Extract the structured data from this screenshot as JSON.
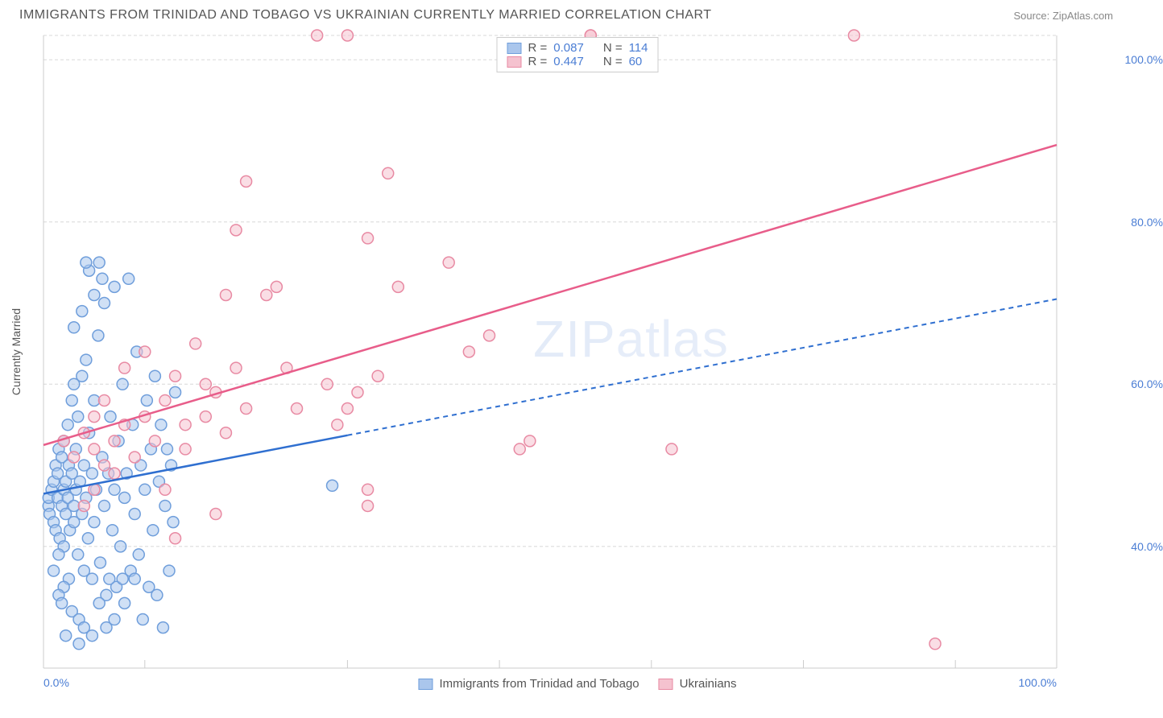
{
  "header": {
    "title": "IMMIGRANTS FROM TRINIDAD AND TOBAGO VS UKRAINIAN CURRENTLY MARRIED CORRELATION CHART",
    "source": "Source: ZipAtlas.com"
  },
  "chart": {
    "type": "scatter",
    "watermark": "ZIPatlas",
    "y_axis_label": "Currently Married",
    "background_color": "#ffffff",
    "grid_color": "#d8d8d8",
    "axis_color": "#cccccc",
    "label_color": "#4a7dd4",
    "text_color": "#555555",
    "xlim": [
      0,
      100
    ],
    "ylim": [
      25,
      103
    ],
    "x_ticks_major": [
      0,
      100
    ],
    "x_ticks_minor": [
      10,
      30,
      45,
      60,
      75,
      90
    ],
    "y_ticks": [
      40,
      60,
      80,
      100
    ],
    "x_tick_labels": [
      "0.0%",
      "100.0%"
    ],
    "y_tick_labels": [
      "40.0%",
      "60.0%",
      "80.0%",
      "100.0%"
    ],
    "marker_radius": 7,
    "marker_stroke_width": 1.5,
    "series": [
      {
        "name": "Immigrants from Trinidad and Tobago",
        "color_fill": "#aac6ec",
        "color_stroke": "#6f9edb",
        "color_line": "#2f6fd0",
        "r": 0.087,
        "n": 114,
        "regression": {
          "x1": 0,
          "y1": 46.5,
          "x2": 100,
          "y2": 70.5,
          "solid_until_x": 30
        },
        "points": [
          [
            0.5,
            45
          ],
          [
            0.5,
            46
          ],
          [
            0.6,
            44
          ],
          [
            0.8,
            47
          ],
          [
            1.0,
            48
          ],
          [
            1.0,
            43
          ],
          [
            1.2,
            50
          ],
          [
            1.2,
            42
          ],
          [
            1.4,
            46
          ],
          [
            1.4,
            49
          ],
          [
            1.5,
            52
          ],
          [
            1.6,
            41
          ],
          [
            1.8,
            45
          ],
          [
            1.8,
            51
          ],
          [
            2.0,
            47
          ],
          [
            2.0,
            40
          ],
          [
            2.0,
            53
          ],
          [
            2.2,
            44
          ],
          [
            2.2,
            48
          ],
          [
            2.4,
            46
          ],
          [
            2.4,
            55
          ],
          [
            2.5,
            50
          ],
          [
            2.6,
            42
          ],
          [
            2.8,
            49
          ],
          [
            2.8,
            58
          ],
          [
            3.0,
            45
          ],
          [
            3.0,
            43
          ],
          [
            3.0,
            60
          ],
          [
            3.2,
            47
          ],
          [
            3.2,
            52
          ],
          [
            3.4,
            39
          ],
          [
            3.4,
            56
          ],
          [
            3.6,
            48
          ],
          [
            3.8,
            44
          ],
          [
            3.8,
            61
          ],
          [
            4.0,
            50
          ],
          [
            4.0,
            37
          ],
          [
            4.2,
            46
          ],
          [
            4.2,
            63
          ],
          [
            4.4,
            41
          ],
          [
            4.5,
            54
          ],
          [
            4.8,
            49
          ],
          [
            4.8,
            36
          ],
          [
            5.0,
            58
          ],
          [
            5.0,
            43
          ],
          [
            5.2,
            47
          ],
          [
            5.4,
            66
          ],
          [
            5.6,
            38
          ],
          [
            5.8,
            51
          ],
          [
            6.0,
            45
          ],
          [
            6.0,
            70
          ],
          [
            6.2,
            34
          ],
          [
            6.4,
            49
          ],
          [
            6.6,
            56
          ],
          [
            6.8,
            42
          ],
          [
            7.0,
            47
          ],
          [
            7.0,
            72
          ],
          [
            7.2,
            35
          ],
          [
            7.4,
            53
          ],
          [
            7.6,
            40
          ],
          [
            7.8,
            60
          ],
          [
            8.0,
            46
          ],
          [
            8.0,
            33
          ],
          [
            8.2,
            49
          ],
          [
            8.4,
            73
          ],
          [
            8.6,
            37
          ],
          [
            8.8,
            55
          ],
          [
            9.0,
            44
          ],
          [
            9.2,
            64
          ],
          [
            9.4,
            39
          ],
          [
            9.6,
            50
          ],
          [
            9.8,
            31
          ],
          [
            10.0,
            47
          ],
          [
            10.2,
            58
          ],
          [
            10.4,
            35
          ],
          [
            10.6,
            52
          ],
          [
            10.8,
            42
          ],
          [
            11.0,
            61
          ],
          [
            11.2,
            34
          ],
          [
            11.4,
            48
          ],
          [
            11.6,
            55
          ],
          [
            11.8,
            30
          ],
          [
            12.0,
            45
          ],
          [
            12.2,
            52
          ],
          [
            12.4,
            37
          ],
          [
            12.6,
            50
          ],
          [
            12.8,
            43
          ],
          [
            13.0,
            59
          ],
          [
            4.5,
            74
          ],
          [
            4.2,
            75
          ],
          [
            3.8,
            69
          ],
          [
            3.0,
            67
          ],
          [
            2.5,
            36
          ],
          [
            2.0,
            35
          ],
          [
            1.5,
            34
          ],
          [
            1.8,
            33
          ],
          [
            2.8,
            32
          ],
          [
            3.5,
            31
          ],
          [
            4.0,
            30
          ],
          [
            4.8,
            29
          ],
          [
            5.5,
            33
          ],
          [
            6.2,
            30
          ],
          [
            7.0,
            31
          ],
          [
            7.8,
            36
          ],
          [
            3.5,
            28
          ],
          [
            2.2,
            29
          ],
          [
            1.0,
            37
          ],
          [
            1.5,
            39
          ],
          [
            5.5,
            75
          ],
          [
            5.0,
            71
          ],
          [
            5.8,
            73
          ],
          [
            6.5,
            36
          ],
          [
            9.0,
            36
          ],
          [
            28.5,
            47.5
          ]
        ]
      },
      {
        "name": "Ukrainians",
        "color_fill": "#f5c2cf",
        "color_stroke": "#e88aa3",
        "color_line": "#e85d8a",
        "r": 0.447,
        "n": 60,
        "regression": {
          "x1": 0,
          "y1": 52.5,
          "x2": 100,
          "y2": 89.5,
          "solid_until_x": 100
        },
        "points": [
          [
            2,
            53
          ],
          [
            3,
            51
          ],
          [
            4,
            54
          ],
          [
            5,
            52
          ],
          [
            5,
            56
          ],
          [
            6,
            50
          ],
          [
            6,
            58
          ],
          [
            7,
            53
          ],
          [
            7,
            49
          ],
          [
            8,
            55
          ],
          [
            8,
            62
          ],
          [
            9,
            51
          ],
          [
            10,
            56
          ],
          [
            10,
            64
          ],
          [
            11,
            53
          ],
          [
            12,
            58
          ],
          [
            12,
            47
          ],
          [
            13,
            61
          ],
          [
            14,
            55
          ],
          [
            14,
            52
          ],
          [
            15,
            65
          ],
          [
            16,
            56
          ],
          [
            16,
            60
          ],
          [
            17,
            59
          ],
          [
            18,
            54
          ],
          [
            18,
            71
          ],
          [
            19,
            62
          ],
          [
            20,
            57
          ],
          [
            20,
            85
          ],
          [
            22,
            71
          ],
          [
            23,
            72
          ],
          [
            24,
            62
          ],
          [
            25,
            57
          ],
          [
            27,
            103
          ],
          [
            28,
            60
          ],
          [
            29,
            55
          ],
          [
            30,
            57
          ],
          [
            30,
            103
          ],
          [
            31,
            59
          ],
          [
            32,
            45
          ],
          [
            32,
            47
          ],
          [
            32,
            78
          ],
          [
            33,
            61
          ],
          [
            34,
            86
          ],
          [
            35,
            72
          ],
          [
            40,
            75
          ],
          [
            42,
            64
          ],
          [
            47,
            52
          ],
          [
            48,
            53
          ],
          [
            44,
            66
          ],
          [
            62,
            52
          ],
          [
            54,
            103
          ],
          [
            54,
            104
          ],
          [
            80,
            103
          ],
          [
            88,
            28
          ],
          [
            13,
            41
          ],
          [
            17,
            44
          ],
          [
            19,
            79
          ],
          [
            4,
            45
          ],
          [
            5,
            47
          ]
        ]
      }
    ]
  }
}
